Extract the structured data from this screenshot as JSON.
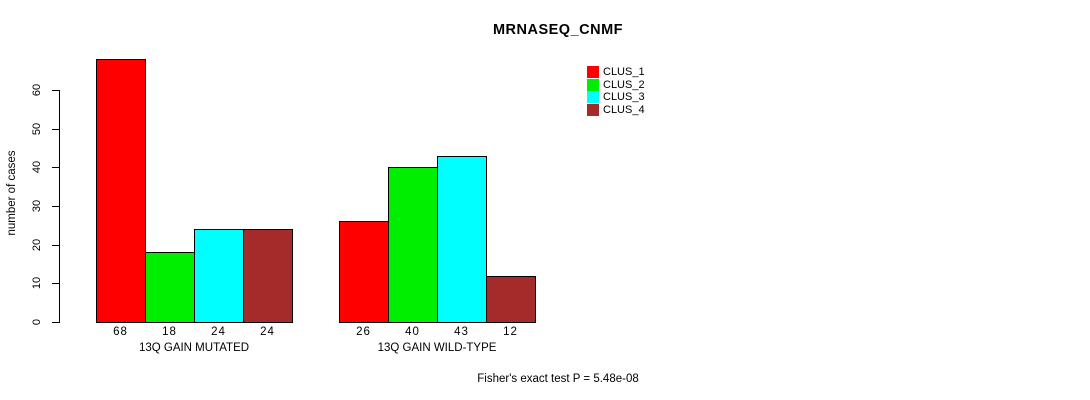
{
  "chart_data": {
    "type": "bar",
    "title": "MRNASEQ_CNMF",
    "ylabel": "number of cases",
    "xlabel": "",
    "annotation": "Fisher's exact test P = 5.48e-08",
    "groups": [
      "13Q GAIN MUTATED",
      "13Q GAIN WILD-TYPE"
    ],
    "series": [
      {
        "name": "CLUS_1",
        "color": "#ff0000",
        "values": [
          68,
          26
        ]
      },
      {
        "name": "CLUS_2",
        "color": "#00ee00",
        "values": [
          18,
          40
        ]
      },
      {
        "name": "CLUS_3",
        "color": "#00ffff",
        "values": [
          24,
          43
        ]
      },
      {
        "name": "CLUS_4",
        "color": "#a52a2a",
        "values": [
          24,
          12
        ]
      }
    ],
    "yticks": [
      0,
      10,
      20,
      30,
      40,
      50,
      60
    ],
    "ylim": [
      0,
      60
    ],
    "grid": false,
    "bar_value_labels": true,
    "legend_position": "top-right"
  },
  "legend": {
    "items": [
      {
        "label": "CLUS_1",
        "color": "#ff0000"
      },
      {
        "label": "CLUS_2",
        "color": "#00ee00"
      },
      {
        "label": "CLUS_3",
        "color": "#00ffff"
      },
      {
        "label": "CLUS_4",
        "color": "#a52a2a"
      }
    ]
  }
}
